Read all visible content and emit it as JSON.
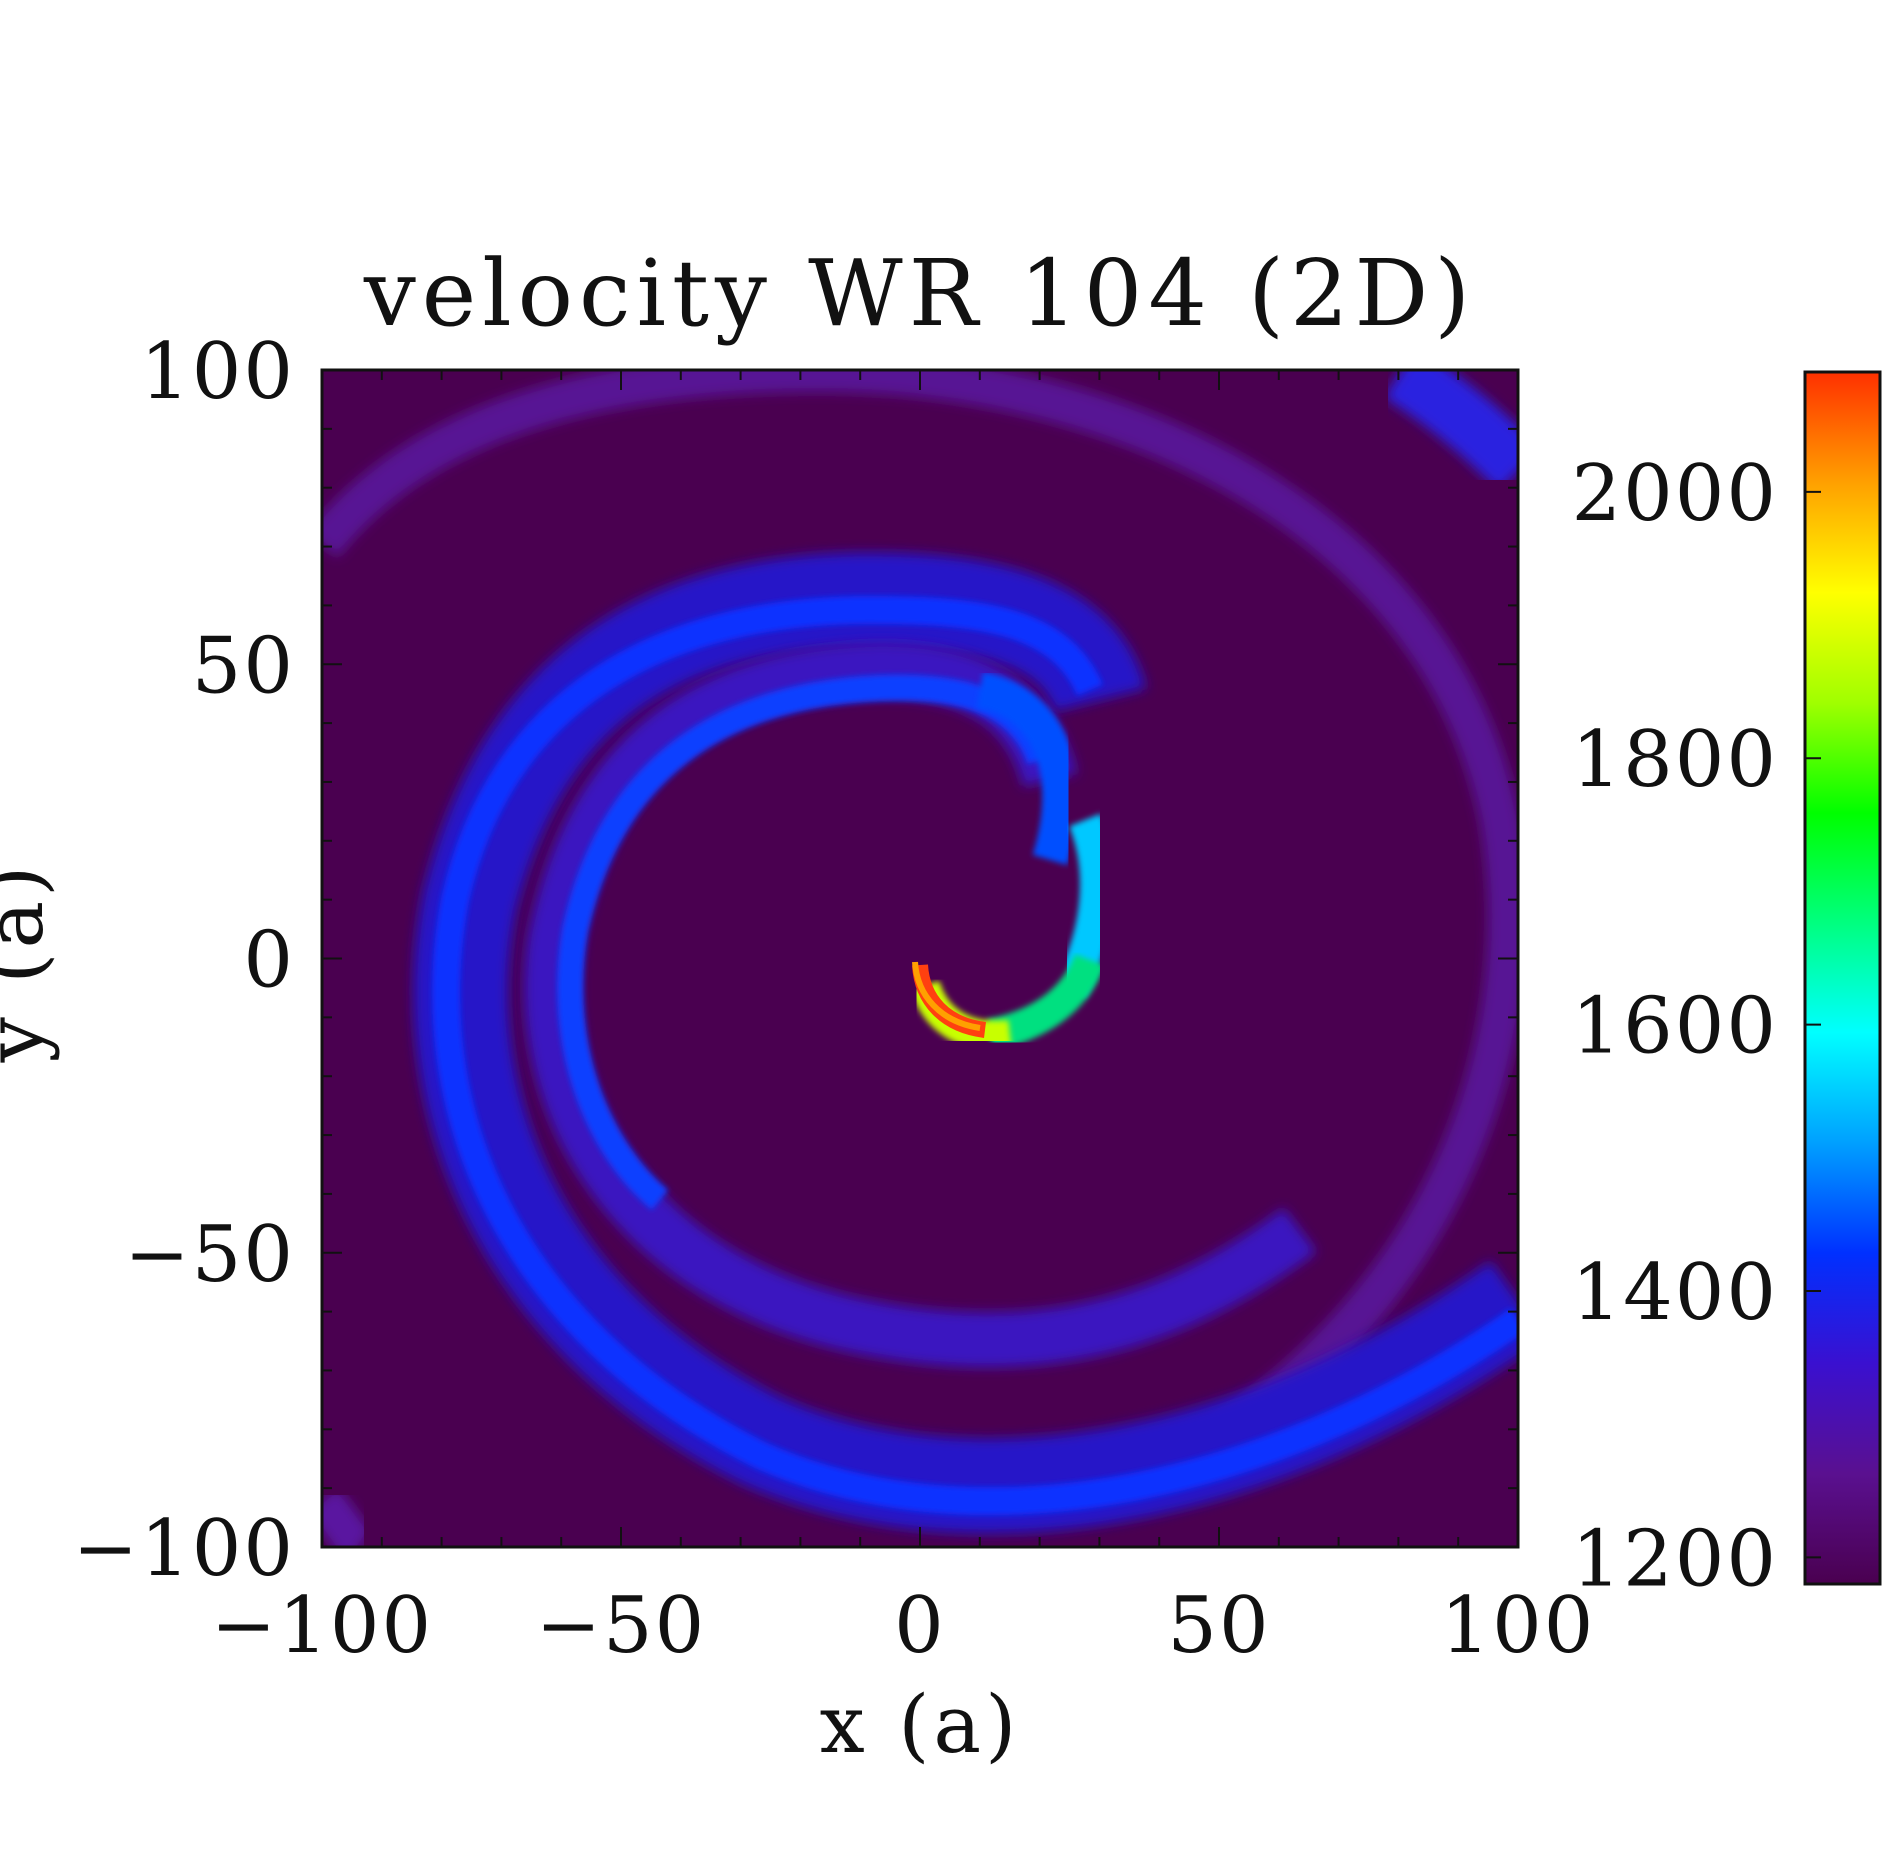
{
  "chart_data": {
    "type": "heatmap",
    "title": "velocity WR 104 (2D)",
    "xlabel": "x (a)",
    "ylabel": "y (a)",
    "xlim": [
      -100,
      100
    ],
    "ylim": [
      -100,
      100
    ],
    "x_ticks": [
      -100,
      -50,
      0,
      50,
      100
    ],
    "x_tick_labels": [
      "−100",
      "−50",
      "0",
      "50",
      "100"
    ],
    "y_ticks": [
      100,
      50,
      0,
      -50,
      -100
    ],
    "y_tick_labels": [
      "100",
      "50",
      "0",
      "−50",
      "−100"
    ],
    "colorbar": {
      "range": [
        1180,
        2090
      ],
      "ticks": [
        2000,
        1800,
        1600,
        1400,
        1200
      ],
      "tick_labels": [
        "2000",
        "1800",
        "1600",
        "1400",
        "1200"
      ],
      "colormap": [
        "#4a0050",
        "#5a1090",
        "#3a10d0",
        "#0030ff",
        "#00a0ff",
        "#00ffff",
        "#00ff80",
        "#00ff00",
        "#a0ff00",
        "#ffff00",
        "#ffa000",
        "#ff3000"
      ]
    },
    "background_value": 1200,
    "features": [
      {
        "name": "inner spiral arm (crest)",
        "value_range": [
          1350,
          2080
        ],
        "peak": "near origin, x 0 to 20, y -5 to -15"
      },
      {
        "name": "outer spiral arm",
        "value_range": [
          1250,
          1400
        ]
      },
      {
        "name": "outermost faint arm",
        "value_range": [
          1220,
          1300
        ]
      }
    ]
  }
}
